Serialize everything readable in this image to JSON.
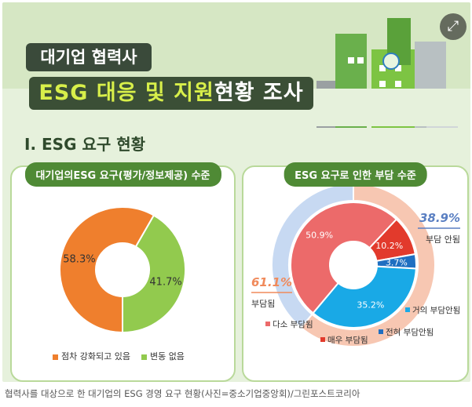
{
  "header": {
    "pill_small": "대기업 협력사",
    "title_highlight": "ESG 대응 및 지원",
    "title_rest": "현황 조사",
    "section": "Ⅰ. ESG 요구 현황"
  },
  "expand_icon": "expand-arrows-icon",
  "chart_data": [
    {
      "type": "pie",
      "title": "대기업의ESG 요구(평가/정보제공) 수준",
      "labels": [
        "점차 강화되고 있음",
        "변동 없음"
      ],
      "values": [
        58.3,
        41.7
      ],
      "value_labels": [
        "58.3%",
        "41.7%"
      ],
      "colors": [
        "#ef7f2d",
        "#92ca4e"
      ],
      "legend_position": "bottom"
    },
    {
      "type": "pie",
      "title": "ESG 요구로 인한 부담 수준",
      "outer": {
        "labels": [
          "부담됨",
          "부담 안됨"
        ],
        "values": [
          61.1,
          38.9
        ],
        "value_labels": [
          "61.1%",
          "38.9%"
        ],
        "colors": [
          "#f7c7b2",
          "#c7d9f2"
        ]
      },
      "inner": {
        "labels": [
          "다소 부담됨",
          "매우 부담됨",
          "전혀 부담안됨",
          "거의 부담안됨"
        ],
        "values": [
          50.9,
          10.2,
          3.7,
          35.2
        ],
        "value_labels": [
          "50.9%",
          "10.2%",
          "3.7%",
          "35.2%"
        ],
        "colors": [
          "#ec6a6a",
          "#e23a2c",
          "#1f6fc1",
          "#19a9e6"
        ]
      },
      "legend_position": "bottom"
    }
  ],
  "caption": "협력사를 대상으로 한 대기업의 ESG 경영 요구 현황(사진=중소기업중앙회)/그린포스트코리아"
}
